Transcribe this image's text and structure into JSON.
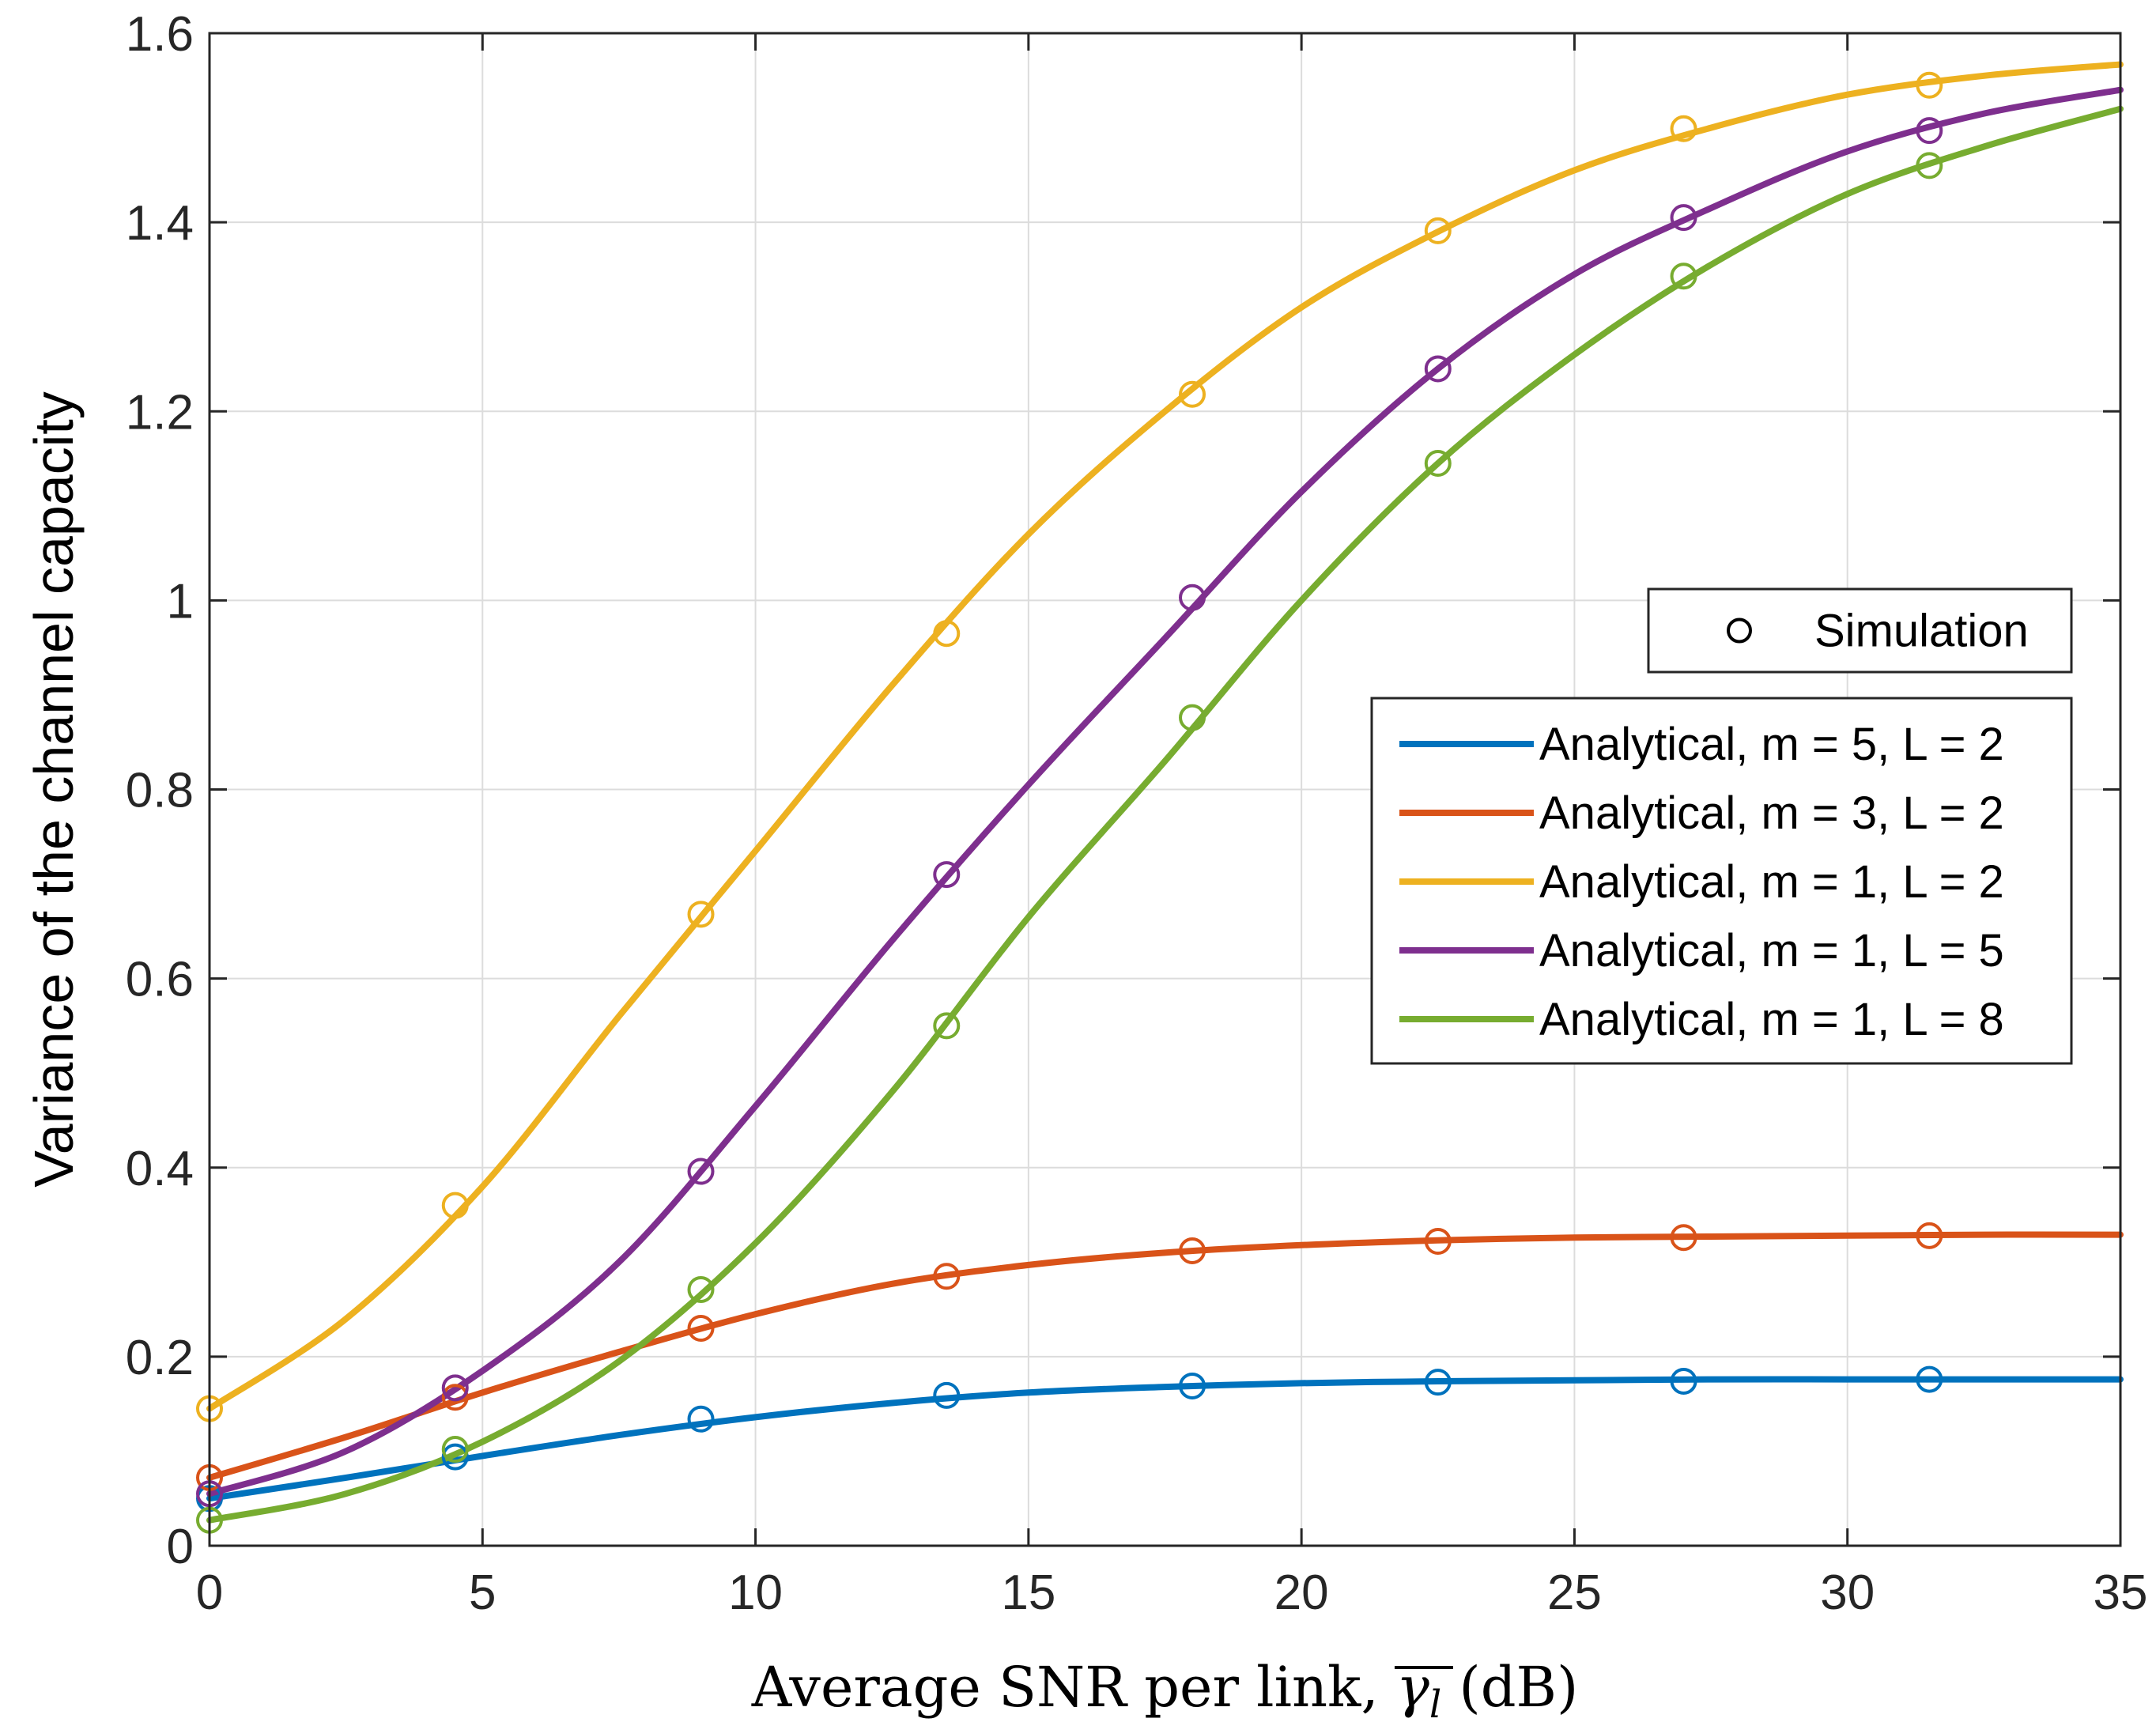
{
  "chart_data": {
    "type": "line",
    "xlabel": "Average SNR per link, γ̄l (dB)",
    "xlabel_main": "Average SNR per link, ",
    "xlabel_sym": "γ",
    "xlabel_sub": "l",
    "xlabel_unit": " (dB)",
    "ylabel": "Variance of the channel capacity",
    "xlim": [
      0,
      35
    ],
    "ylim": [
      0,
      1.6
    ],
    "xticks": [
      0,
      5,
      10,
      15,
      20,
      25,
      30,
      35
    ],
    "yticks": [
      0,
      0.2,
      0.4,
      0.6,
      0.8,
      1,
      1.2,
      1.4,
      1.6
    ],
    "xtick_labels": [
      "0",
      "5",
      "10",
      "15",
      "20",
      "25",
      "30",
      "35"
    ],
    "ytick_labels": [
      "0",
      "0.2",
      "0.4",
      "0.6",
      "0.8",
      "1",
      "1.2",
      "1.4",
      "1.6"
    ],
    "grid": true,
    "sim_x": [
      0,
      4.5,
      9,
      13.5,
      18,
      22.5,
      27,
      31.5
    ],
    "simulation_legend": "Simulation",
    "legend_placement": "right",
    "series": [
      {
        "name": "Analytical, m = 5, L = 2",
        "color": "#0072BD",
        "x": [
          0,
          2.5,
          5,
          7.5,
          10,
          12.5,
          15,
          17.5,
          20,
          22.5,
          25,
          27.5,
          30,
          32.5,
          35
        ],
        "values": [
          0.05,
          0.072,
          0.095,
          0.117,
          0.136,
          0.151,
          0.162,
          0.168,
          0.172,
          0.174,
          0.175,
          0.176,
          0.176,
          0.176,
          0.176
        ],
        "sim_values": [
          0.05,
          0.094,
          0.134,
          0.159,
          0.169,
          0.173,
          0.174,
          0.176
        ]
      },
      {
        "name": "Analytical, m = 3, L = 2",
        "color": "#D95319",
        "x": [
          0,
          2.5,
          5,
          7.5,
          10,
          12.5,
          15,
          17.5,
          20,
          22.5,
          25,
          27.5,
          30,
          32.5,
          35
        ],
        "values": [
          0.072,
          0.115,
          0.162,
          0.205,
          0.245,
          0.277,
          0.297,
          0.31,
          0.318,
          0.323,
          0.326,
          0.327,
          0.328,
          0.329,
          0.329
        ],
        "sim_values": [
          0.072,
          0.157,
          0.23,
          0.285,
          0.312,
          0.322,
          0.326,
          0.328
        ]
      },
      {
        "name": "Analytical, m = 1, L = 2",
        "color": "#EDB120",
        "x": [
          0,
          2.5,
          5,
          7.5,
          10,
          12.5,
          15,
          17.5,
          20,
          22.5,
          25,
          27.5,
          30,
          32.5,
          35
        ],
        "values": [
          0.145,
          0.24,
          0.38,
          0.56,
          0.735,
          0.91,
          1.07,
          1.2,
          1.31,
          1.39,
          1.455,
          1.5,
          1.535,
          1.555,
          1.567
        ],
        "sim_values": [
          0.145,
          0.36,
          0.668,
          0.965,
          1.218,
          1.391,
          1.499,
          1.545
        ]
      },
      {
        "name": "Analytical, m = 1, L = 5",
        "color": "#7E2F8E",
        "x": [
          0,
          2.5,
          5,
          7.5,
          10,
          12.5,
          15,
          17.5,
          20,
          22.5,
          25,
          27.5,
          30,
          32.5,
          35
        ],
        "values": [
          0.055,
          0.1,
          0.185,
          0.3,
          0.465,
          0.64,
          0.805,
          0.96,
          1.115,
          1.245,
          1.345,
          1.415,
          1.475,
          1.515,
          1.54
        ],
        "sim_values": [
          0.055,
          0.167,
          0.396,
          0.71,
          1.003,
          1.245,
          1.405,
          1.497
        ]
      },
      {
        "name": "Analytical, m = 1, L = 8",
        "color": "#77AC30",
        "x": [
          0,
          2.5,
          5,
          7.5,
          10,
          12.5,
          15,
          17.5,
          20,
          22.5,
          25,
          27.5,
          30,
          32.5,
          35
        ],
        "values": [
          0.027,
          0.055,
          0.11,
          0.195,
          0.32,
          0.48,
          0.665,
          0.83,
          1.0,
          1.145,
          1.26,
          1.355,
          1.43,
          1.48,
          1.52
        ],
        "sim_values": [
          0.027,
          0.102,
          0.271,
          0.55,
          0.876,
          1.145,
          1.343,
          1.46
        ]
      }
    ]
  }
}
